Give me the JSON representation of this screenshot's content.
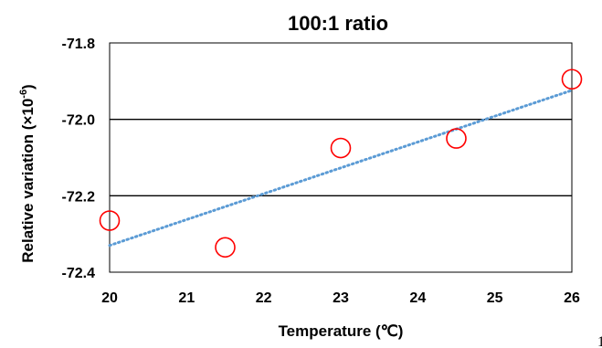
{
  "chart_data": {
    "type": "scatter",
    "title": "100:1  ratio",
    "xlabel": "Temperature (℃)",
    "ylabel_main": "Relative variation (×10",
    "ylabel_exp": "-6",
    "ylabel_close": ")",
    "xlim": [
      20,
      26
    ],
    "ylim": [
      -72.4,
      -71.8
    ],
    "x_ticks": [
      20,
      21,
      22,
      23,
      24,
      25,
      26
    ],
    "y_ticks": [
      -71.8,
      -72.0,
      -72.2,
      -72.4
    ],
    "x_tick_labels": [
      "20",
      "21",
      "22",
      "23",
      "24",
      "25",
      "26"
    ],
    "y_tick_labels": [
      "-71.8",
      "-72.0",
      "-72.2",
      "-72.4"
    ],
    "grid_y_values": [
      -72.0,
      -72.2
    ],
    "series": [
      {
        "x": [
          20.0,
          21.5,
          23.0,
          24.5,
          26.0
        ],
        "y": [
          -72.265,
          -72.335,
          -72.075,
          -72.05,
          -71.895
        ],
        "marker": "open-circle",
        "color": "#ff0000"
      }
    ],
    "trendline": {
      "type": "linear",
      "x": [
        20,
        26
      ],
      "y": [
        -72.33,
        -71.924
      ],
      "color": "#5b9bd5",
      "style": "dotted"
    }
  },
  "stray_text": "1"
}
